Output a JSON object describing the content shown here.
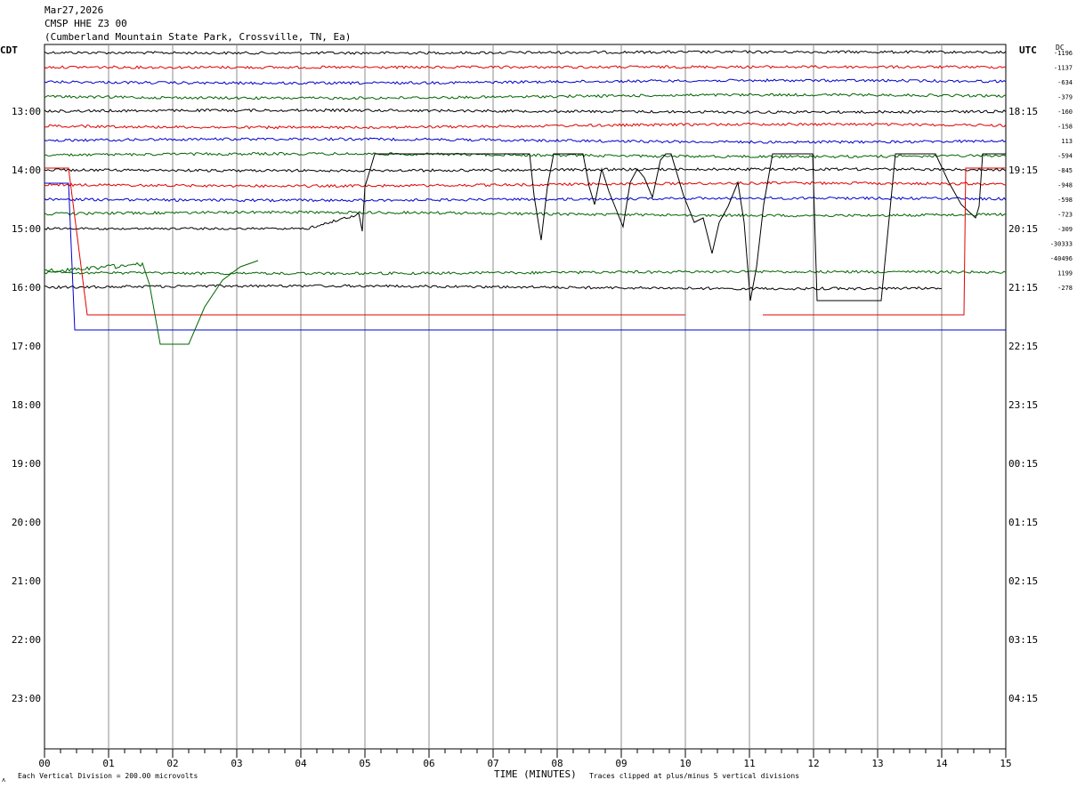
{
  "header": {
    "date": "Mar27,2026",
    "station": "CMSP HHE Z3 00",
    "location": "(Cumberland Mountain State Park, Crossville, TN, Ea)"
  },
  "left_zone_label": "CDT",
  "right_zone_label": "UTC",
  "dc_label": "DC",
  "footer": {
    "xlabel": "TIME (MINUTES)",
    "scale_note": "Each Vertical Division =  200.00 microvolts",
    "clip_note": "Traces clipped at plus/minus 5 vertical divisions",
    "corner_mark": "ᴧ"
  },
  "colors": {
    "black": "#000000",
    "red": "#e00000",
    "blue": "#0000cc",
    "green": "#006400",
    "grid": "#8c8c8c"
  },
  "chart_data": {
    "type": "line",
    "title": "CMSP HHE Z3 00",
    "xlabel": "TIME (MINUTES)",
    "x_ticks": [
      "00",
      "01",
      "02",
      "03",
      "04",
      "05",
      "06",
      "07",
      "08",
      "09",
      "10",
      "11",
      "12",
      "13",
      "14",
      "15"
    ],
    "xlim": [
      0,
      15
    ],
    "left_hour_labels": [
      "13:00",
      "14:00",
      "15:00",
      "16:00",
      "17:00",
      "18:00",
      "19:00",
      "20:00",
      "21:00",
      "22:00",
      "23:00"
    ],
    "right_hour_labels": [
      "18:15",
      "19:15",
      "20:15",
      "21:15",
      "22:15",
      "23:15",
      "00:15",
      "01:15",
      "02:15",
      "03:15",
      "04:15"
    ],
    "dc_offsets": [
      "-1196",
      "-1137",
      "-634",
      "-379",
      "-160",
      "-158",
      "113",
      "-594",
      "-845",
      "-948",
      "-598",
      "-723",
      "-309",
      "-30333",
      "-40496",
      "1199",
      "-278"
    ],
    "series": [
      {
        "row": 0,
        "color": "black",
        "kind": "noise",
        "end_min": 15
      },
      {
        "row": 1,
        "color": "red",
        "kind": "noise",
        "end_min": 15
      },
      {
        "row": 2,
        "color": "blue",
        "kind": "noise",
        "end_min": 15
      },
      {
        "row": 3,
        "color": "green",
        "kind": "noise",
        "end_min": 15
      },
      {
        "row": 4,
        "color": "black",
        "kind": "noise",
        "end_min": 15
      },
      {
        "row": 5,
        "color": "red",
        "kind": "noise",
        "end_min": 15
      },
      {
        "row": 6,
        "color": "blue",
        "kind": "noise",
        "end_min": 15
      },
      {
        "row": 7,
        "color": "green",
        "kind": "noise",
        "end_min": 15
      },
      {
        "row": 8,
        "color": "black",
        "kind": "noise",
        "end_min": 15
      },
      {
        "row": 9,
        "color": "red",
        "kind": "noise",
        "end_min": 15
      },
      {
        "row": 10,
        "color": "blue",
        "kind": "noise",
        "end_min": 15
      },
      {
        "row": 11,
        "color": "green",
        "kind": "noise",
        "end_min": 15
      },
      {
        "row": 12,
        "color": "black",
        "kind": "event",
        "end_min": 15
      },
      {
        "row": 15,
        "color": "green",
        "kind": "noise",
        "end_min": 15
      },
      {
        "row": 16,
        "color": "black",
        "kind": "noise",
        "end_min": 14
      }
    ]
  }
}
